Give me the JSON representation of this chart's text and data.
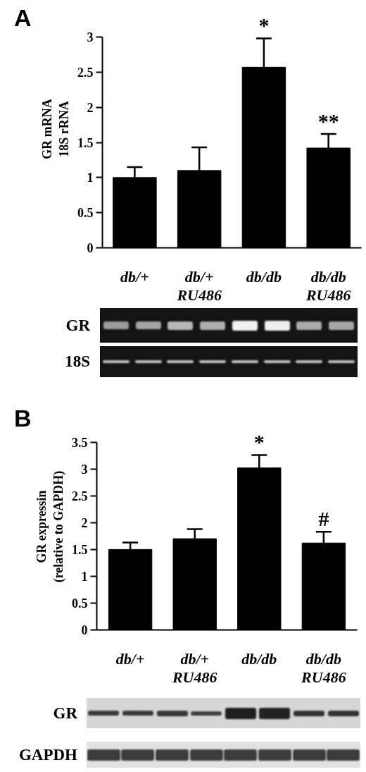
{
  "chart_data": [
    {
      "type": "bar",
      "title": "A",
      "ylabel": "GR mRNA\n18S rRNA",
      "categories": [
        "db/+",
        "db/+\nRU486",
        "db/db",
        "db/db\nRU486"
      ],
      "values": [
        1.0,
        1.1,
        2.57,
        1.42
      ],
      "errors": [
        0.15,
        0.33,
        0.41,
        0.2
      ],
      "color": "#000000",
      "ylim": [
        0,
        3
      ],
      "yticks": [
        0,
        0.5,
        1,
        1.5,
        2,
        2.5,
        3
      ],
      "grid": false,
      "annotations": [
        {
          "text": "*",
          "x": "db/db",
          "y": 2.98
        },
        {
          "text": "**",
          "x": "db/db\nRU486",
          "y": 1.62
        },
        "GR",
        "18S"
      ]
    },
    {
      "type": "bar",
      "title": "B",
      "ylabel": "GR expressin\n(relative to GAPDH)",
      "categories": [
        "db/+",
        "db/+\nRU486",
        "db/db",
        "db/db\nRU486"
      ],
      "values": [
        1.5,
        1.7,
        3.02,
        1.62
      ],
      "errors": [
        0.13,
        0.18,
        0.24,
        0.21
      ],
      "color": "#000000",
      "ylim": [
        0,
        3.5
      ],
      "yticks": [
        0,
        0.5,
        1,
        1.5,
        2,
        2.5,
        3,
        3.5
      ],
      "grid": false,
      "annotations": [
        {
          "text": "*",
          "x": "db/db",
          "y": 3.26
        },
        {
          "text": "#",
          "x": "db/db\nRU486",
          "y": 1.83
        },
        "GR",
        "GAPDH"
      ]
    }
  ]
}
